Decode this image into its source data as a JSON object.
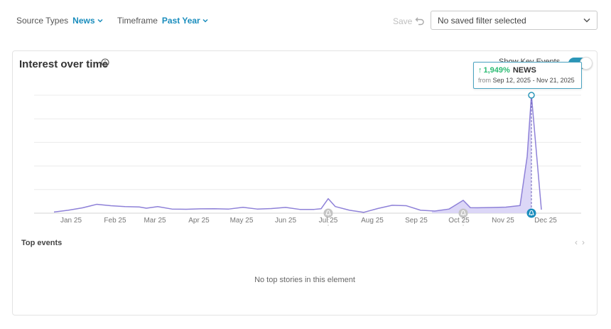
{
  "filters": {
    "source_types": {
      "label": "Source Types",
      "value": "News"
    },
    "timeframe": {
      "label": "Timeframe",
      "value": "Past Year"
    },
    "save_label": "Save",
    "saved_filter": "No saved filter selected"
  },
  "card": {
    "title": "Interest over time",
    "key_events_label": "Show Key Events",
    "key_events_enabled": true,
    "tooltip": {
      "change": "1,949%",
      "series": "NEWS",
      "from_label": "from",
      "range": "Sep 12, 2025 - Nov 21, 2025"
    },
    "top_events_title": "Top events",
    "empty_message": "No top stories in this element"
  },
  "chart_data": {
    "type": "area",
    "x_ticks": [
      "Jan 25",
      "Feb 25",
      "Mar 25",
      "Apr 25",
      "May 25",
      "Jun 25",
      "Jul 25",
      "Aug 25",
      "Sep 25",
      "Oct 25",
      "Nov 25",
      "Dec 25"
    ],
    "x": [
      "2024-12-20",
      "2024-12-30",
      "2025-01-09",
      "2025-01-19",
      "2025-01-29",
      "2025-02-08",
      "2025-02-18",
      "2025-02-23",
      "2025-03-03",
      "2025-03-13",
      "2025-03-23",
      "2025-04-02",
      "2025-04-12",
      "2025-04-22",
      "2025-05-02",
      "2025-05-12",
      "2025-05-22",
      "2025-06-01",
      "2025-06-11",
      "2025-06-21",
      "2025-06-26",
      "2025-07-01",
      "2025-07-06",
      "2025-07-16",
      "2025-07-26",
      "2025-08-05",
      "2025-08-15",
      "2025-08-25",
      "2025-09-04",
      "2025-09-14",
      "2025-09-24",
      "2025-10-04",
      "2025-10-09",
      "2025-10-14",
      "2025-10-24",
      "2025-11-03",
      "2025-11-13",
      "2025-11-18",
      "2025-11-21",
      "2025-11-28"
    ],
    "values": [
      1,
      2.5,
      4.5,
      7.5,
      6.3,
      5.6,
      5.3,
      4.2,
      5.6,
      3.5,
      3.3,
      3.7,
      3.8,
      3.5,
      5,
      3.5,
      3.9,
      4.9,
      3.2,
      3.2,
      3.8,
      12.3,
      5.6,
      2.5,
      0.7,
      4,
      6.7,
      6.3,
      2.5,
      1.8,
      3.5,
      10.9,
      4.7,
      4.6,
      4.8,
      5.1,
      6.5,
      48,
      100,
      3
    ],
    "highlight_range": [
      "2025-09-12",
      "2025-11-21"
    ],
    "peak": {
      "x": "2025-11-21",
      "value": 100
    },
    "event_markers": [
      "2025-07-01",
      "2025-10-04",
      "2025-11-21"
    ],
    "line_color": "#8e81d8",
    "fill_color": "#d6d0f6",
    "marker_color": "#1a8dbd"
  }
}
